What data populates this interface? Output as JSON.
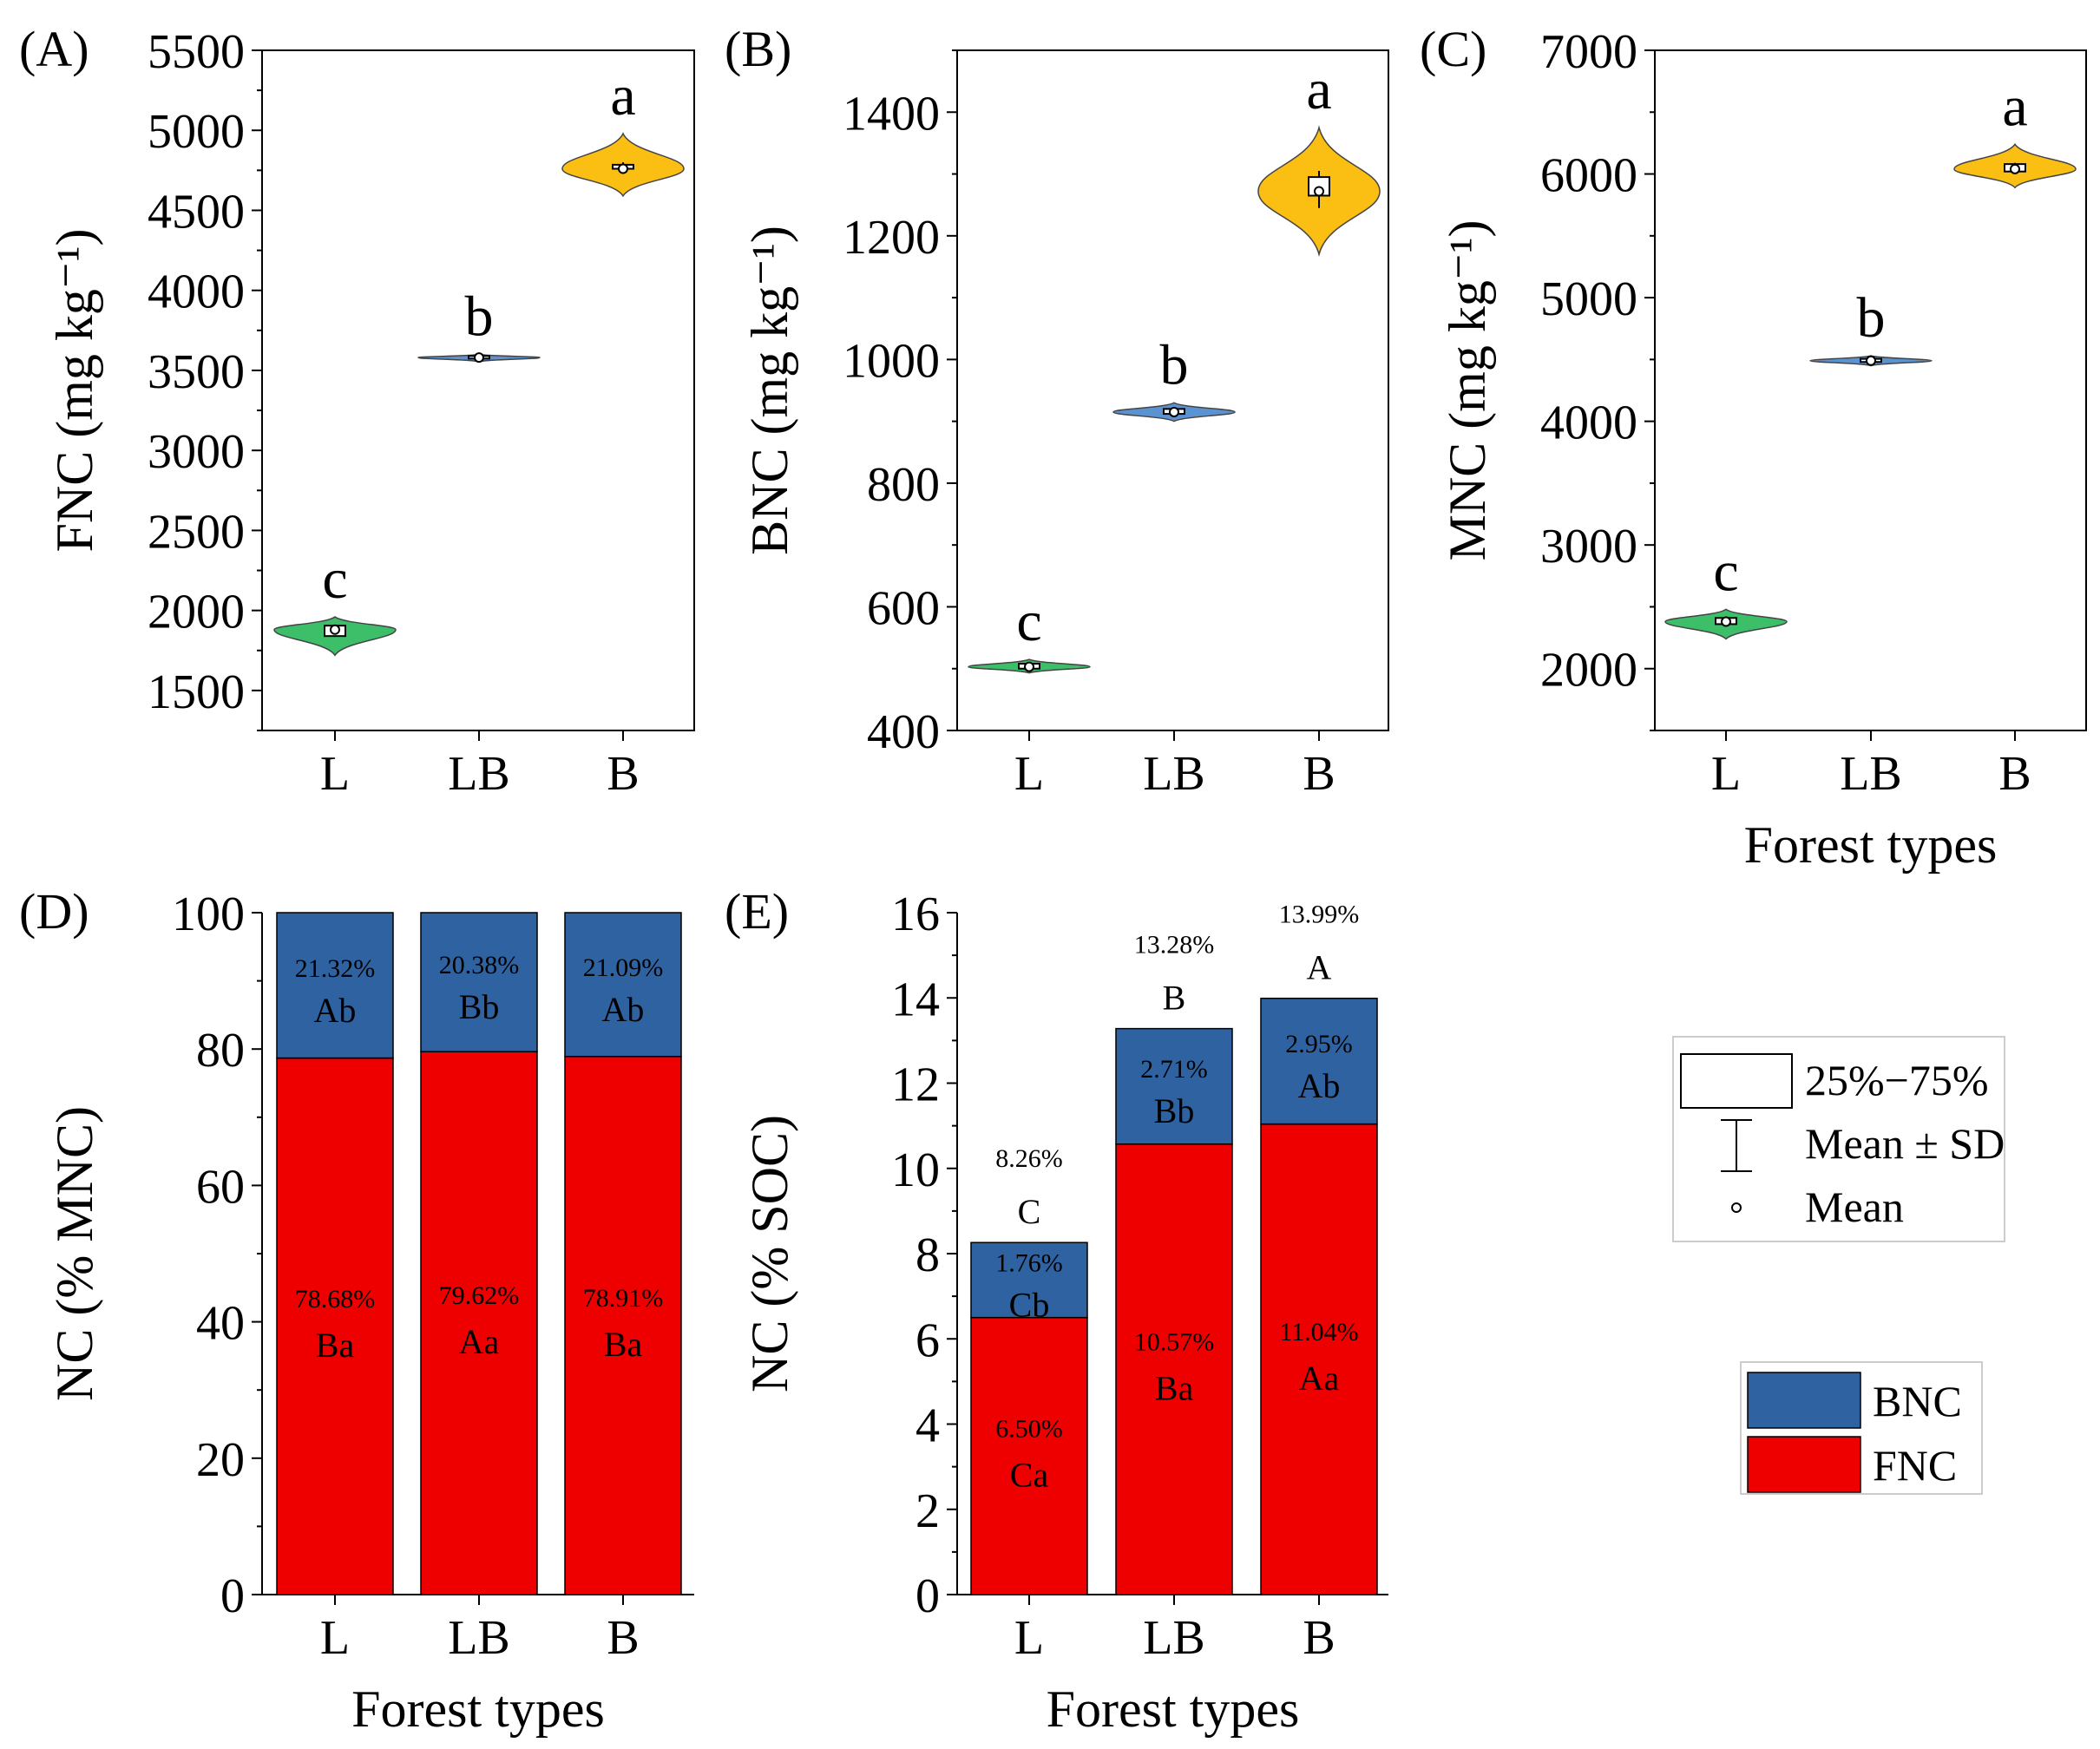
{
  "colors": {
    "L": "#3dbf6a",
    "LB": "#5b93d1",
    "B": "#fbbf14",
    "BNC": "#2f62a0",
    "FNC": "#ee0000",
    "axis": "#000000"
  },
  "legend_stats": {
    "box_label": "25%−75%",
    "sd_label": "Mean ± SD",
    "mean_label": "Mean"
  },
  "legend_stack": {
    "bnc_label": "BNC",
    "fnc_label": "FNC"
  },
  "chart_data": [
    {
      "panel": "(A)",
      "type": "violin",
      "xlabel": "",
      "ylabel": "FNC (mg kg⁻¹)",
      "categories": [
        "L",
        "LB",
        "B"
      ],
      "ylim": [
        1250,
        5500
      ],
      "yticks": [
        1500,
        2000,
        2500,
        3000,
        3500,
        4000,
        4500,
        5000,
        5500
      ],
      "series": [
        {
          "category": "L",
          "mean": 1880,
          "q1": 1840,
          "q3": 1905,
          "sd_low": 1850,
          "sd_high": 1910,
          "min": 1720,
          "max": 1960,
          "letter": "c"
        },
        {
          "category": "LB",
          "mean": 3580,
          "q1": 3575,
          "q3": 3590,
          "sd_low": 3570,
          "sd_high": 3595,
          "min": 3555,
          "max": 3600,
          "letter": "b"
        },
        {
          "category": "B",
          "mean": 4760,
          "q1": 4760,
          "q3": 4785,
          "sd_low": 4740,
          "sd_high": 4800,
          "min": 4590,
          "max": 4980,
          "letter": "a"
        }
      ]
    },
    {
      "panel": "(B)",
      "type": "violin",
      "xlabel": "",
      "ylabel": "BNC (mg kg⁻¹)",
      "categories": [
        "L",
        "LB",
        "B"
      ],
      "ylim": [
        400,
        1500
      ],
      "yticks": [
        400,
        600,
        800,
        1000,
        1200,
        1400
      ],
      "series": [
        {
          "category": "L",
          "mean": 503,
          "q1": 500,
          "q3": 508,
          "sd_low": 497,
          "sd_high": 510,
          "min": 493,
          "max": 515,
          "letter": "c"
        },
        {
          "category": "LB",
          "mean": 915,
          "q1": 912,
          "q3": 920,
          "sd_low": 908,
          "sd_high": 922,
          "min": 900,
          "max": 930,
          "letter": "b"
        },
        {
          "category": "B",
          "mean": 1272,
          "q1": 1265,
          "q3": 1295,
          "sd_low": 1245,
          "sd_high": 1305,
          "min": 1170,
          "max": 1375,
          "letter": "a"
        }
      ]
    },
    {
      "panel": "(C)",
      "type": "violin",
      "xlabel": "Forest types",
      "ylabel": "MNC (mg kg⁻¹)",
      "categories": [
        "L",
        "LB",
        "B"
      ],
      "ylim": [
        1500,
        7000
      ],
      "yticks": [
        2000,
        3000,
        4000,
        5000,
        6000,
        7000
      ],
      "series": [
        {
          "category": "L",
          "mean": 2380,
          "q1": 2360,
          "q3": 2410,
          "sd_low": 2345,
          "sd_high": 2420,
          "min": 2240,
          "max": 2480,
          "letter": "c"
        },
        {
          "category": "LB",
          "mean": 4490,
          "q1": 4480,
          "q3": 4505,
          "sd_low": 4470,
          "sd_high": 4510,
          "min": 4450,
          "max": 4530,
          "letter": "b"
        },
        {
          "category": "B",
          "mean": 6040,
          "q1": 6020,
          "q3": 6080,
          "sd_low": 6000,
          "sd_high": 6090,
          "min": 5890,
          "max": 6240,
          "letter": "a"
        }
      ]
    },
    {
      "panel": "(D)",
      "type": "bar",
      "stacked": true,
      "xlabel": "Forest types",
      "ylabel": "NC (% MNC)",
      "categories": [
        "L",
        "LB",
        "B"
      ],
      "ylim": [
        0,
        100
      ],
      "yticks": [
        0,
        20,
        40,
        60,
        80,
        100
      ],
      "series": [
        {
          "name": "FNC",
          "values": [
            78.68,
            79.62,
            78.91
          ],
          "value_labels": [
            "78.68%",
            "79.62%",
            "78.91%"
          ],
          "letters": [
            "Ba",
            "Aa",
            "Ba"
          ]
        },
        {
          "name": "BNC",
          "values": [
            21.32,
            20.38,
            21.09
          ],
          "value_labels": [
            "21.32%",
            "20.38%",
            "21.09%"
          ],
          "letters": [
            "Ab",
            "Bb",
            "Ab"
          ]
        }
      ],
      "totals": [],
      "total_letters": []
    },
    {
      "panel": "(E)",
      "type": "bar",
      "stacked": true,
      "xlabel": "Forest types",
      "ylabel": "NC (% SOC)",
      "categories": [
        "L",
        "LB",
        "B"
      ],
      "ylim": [
        0,
        16
      ],
      "yticks": [
        0,
        2,
        4,
        6,
        8,
        10,
        12,
        14,
        16
      ],
      "series": [
        {
          "name": "FNC",
          "values": [
            6.5,
            10.57,
            11.04
          ],
          "value_labels": [
            "6.50%",
            "10.57%",
            "11.04%"
          ],
          "letters": [
            "Ca",
            "Ba",
            "Aa"
          ]
        },
        {
          "name": "BNC",
          "values": [
            1.76,
            2.71,
            2.95
          ],
          "value_labels": [
            "1.76%",
            "2.71%",
            "2.95%"
          ],
          "letters": [
            "Cb",
            "Bb",
            "Ab"
          ]
        }
      ],
      "totals": [
        "8.26%",
        "13.28%",
        "13.99%"
      ],
      "total_letters": [
        "C",
        "B",
        "A"
      ]
    }
  ]
}
